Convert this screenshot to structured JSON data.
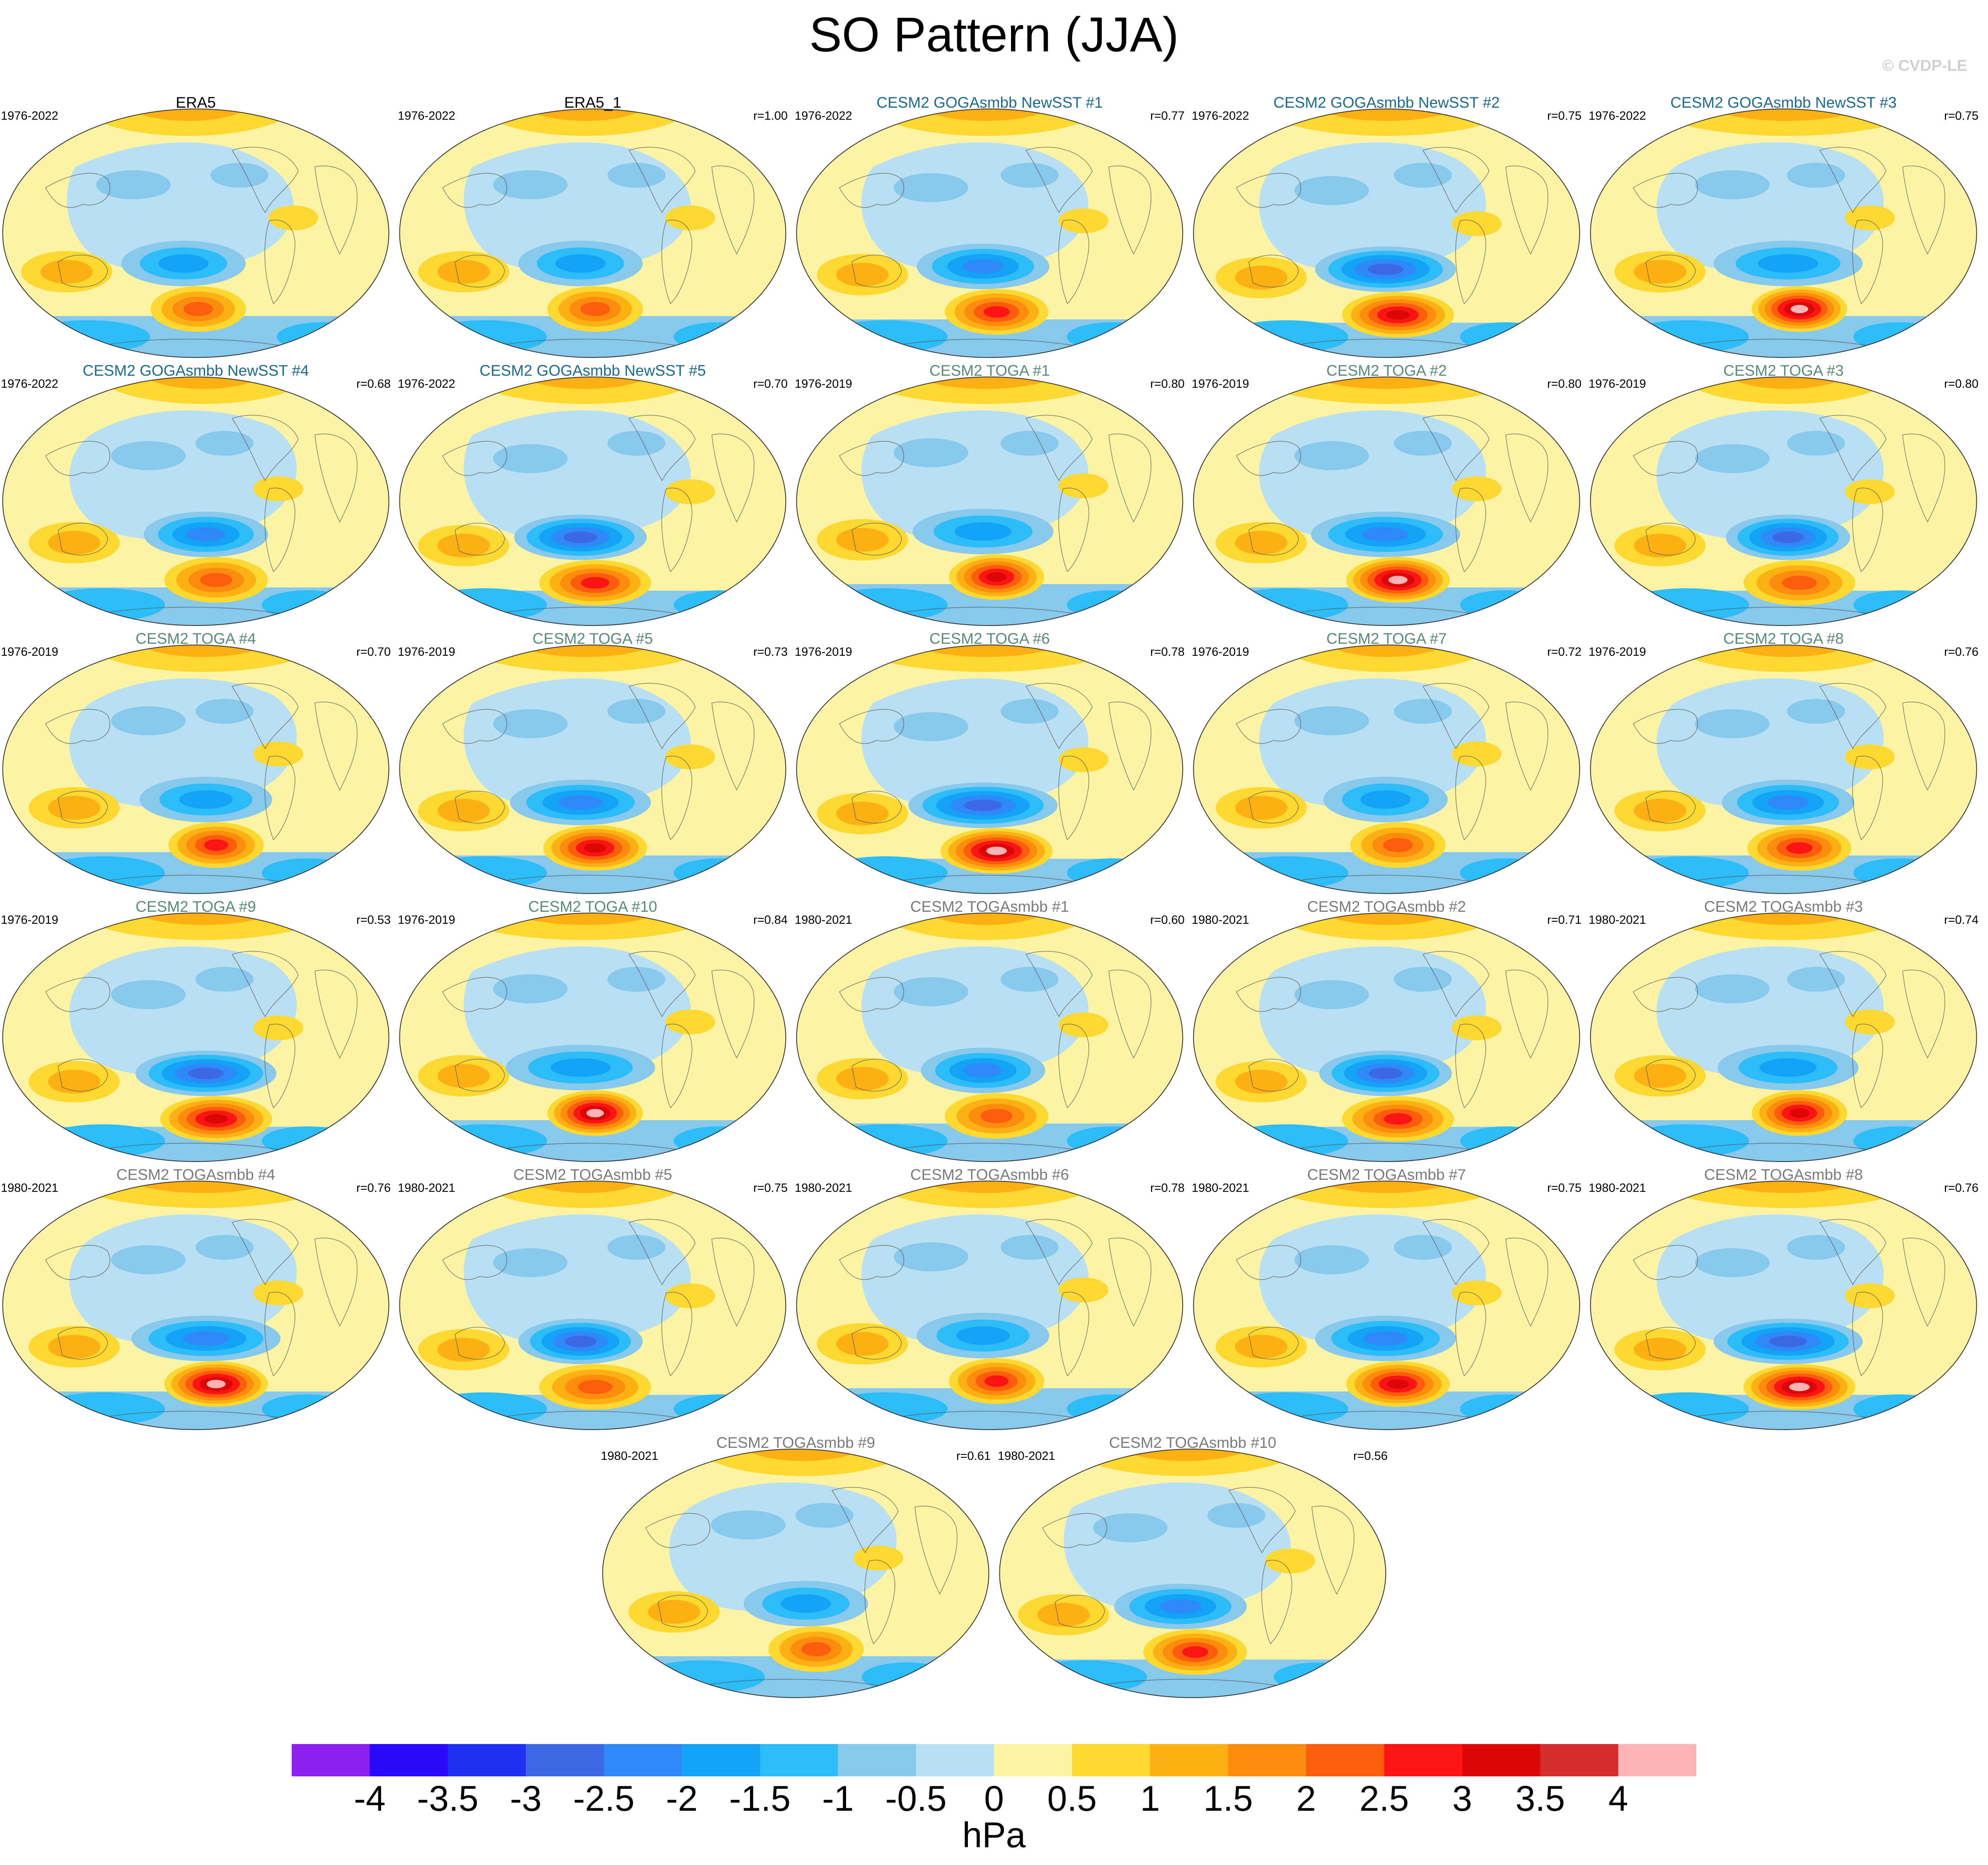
{
  "title": "SO Pattern (JJA)",
  "watermark": "© CVDP-LE",
  "panels": [
    {
      "label": "ERA5",
      "years": "1976-2022",
      "r": "",
      "label_color": "#000000",
      "variant": 0
    },
    {
      "label": "ERA5_1",
      "years": "1976-2022",
      "r": "r=1.00",
      "label_color": "#000000",
      "variant": 0
    },
    {
      "label": "CESM2 GOGAsmbb NewSST #1",
      "years": "1976-2022",
      "r": "r=0.77",
      "label_color": "#1e6a8a",
      "variant": 1
    },
    {
      "label": "CESM2 GOGAsmbb NewSST #2",
      "years": "1976-2022",
      "r": "r=0.75",
      "label_color": "#1e6a8a",
      "variant": 2
    },
    {
      "label": "CESM2 GOGAsmbb NewSST #3",
      "years": "1976-2022",
      "r": "r=0.75",
      "label_color": "#1e6a8a",
      "variant": 3
    },
    {
      "label": "CESM2 GOGAsmbb NewSST #4",
      "years": "1976-2022",
      "r": "r=0.68",
      "label_color": "#1e6a8a",
      "variant": 4
    },
    {
      "label": "CESM2 GOGAsmbb NewSST #5",
      "years": "1976-2022",
      "r": "r=0.70",
      "label_color": "#1e6a8a",
      "variant": 5
    },
    {
      "label": "CESM2 TOGA #1",
      "years": "1976-2019",
      "r": "r=0.80",
      "label_color": "#5a8a78",
      "variant": 6
    },
    {
      "label": "CESM2 TOGA #2",
      "years": "1976-2019",
      "r": "r=0.80",
      "label_color": "#5a8a78",
      "variant": 7
    },
    {
      "label": "CESM2 TOGA #3",
      "years": "1976-2019",
      "r": "r=0.80",
      "label_color": "#5a8a78",
      "variant": 8
    },
    {
      "label": "CESM2 TOGA #4",
      "years": "1976-2019",
      "r": "r=0.70",
      "label_color": "#5a8a78",
      "variant": 9
    },
    {
      "label": "CESM2 TOGA #5",
      "years": "1976-2019",
      "r": "r=0.73",
      "label_color": "#5a8a78",
      "variant": 10
    },
    {
      "label": "CESM2 TOGA #6",
      "years": "1976-2019",
      "r": "r=0.78",
      "label_color": "#5a8a78",
      "variant": 11
    },
    {
      "label": "CESM2 TOGA #7",
      "years": "1976-2019",
      "r": "r=0.72",
      "label_color": "#5a8a78",
      "variant": 12
    },
    {
      "label": "CESM2 TOGA #8",
      "years": "1976-2019",
      "r": "r=0.76",
      "label_color": "#5a8a78",
      "variant": 13
    },
    {
      "label": "CESM2 TOGA #9",
      "years": "1976-2019",
      "r": "r=0.53",
      "label_color": "#5a8a78",
      "variant": 14
    },
    {
      "label": "CESM2 TOGA #10",
      "years": "1976-2019",
      "r": "r=0.84",
      "label_color": "#5a8a78",
      "variant": 15
    },
    {
      "label": "CESM2 TOGAsmbb #1",
      "years": "1980-2021",
      "r": "r=0.60",
      "label_color": "#7a7a7a",
      "variant": 16
    },
    {
      "label": "CESM2 TOGAsmbb #2",
      "years": "1980-2021",
      "r": "r=0.71",
      "label_color": "#7a7a7a",
      "variant": 17
    },
    {
      "label": "CESM2 TOGAsmbb #3",
      "years": "1980-2021",
      "r": "r=0.74",
      "label_color": "#7a7a7a",
      "variant": 18
    },
    {
      "label": "CESM2 TOGAsmbb #4",
      "years": "1980-2021",
      "r": "r=0.76",
      "label_color": "#7a7a7a",
      "variant": 19
    },
    {
      "label": "CESM2 TOGAsmbb #5",
      "years": "1980-2021",
      "r": "r=0.75",
      "label_color": "#7a7a7a",
      "variant": 20
    },
    {
      "label": "CESM2 TOGAsmbb #6",
      "years": "1980-2021",
      "r": "r=0.78",
      "label_color": "#7a7a7a",
      "variant": 21
    },
    {
      "label": "CESM2 TOGAsmbb #7",
      "years": "1980-2021",
      "r": "r=0.75",
      "label_color": "#7a7a7a",
      "variant": 22
    },
    {
      "label": "CESM2 TOGAsmbb #8",
      "years": "1980-2021",
      "r": "r=0.76",
      "label_color": "#7a7a7a",
      "variant": 23
    },
    {
      "label": "CESM2 TOGAsmbb #9",
      "years": "1980-2021",
      "r": "r=0.61",
      "label_color": "#7a7a7a",
      "variant": 24
    },
    {
      "label": "CESM2 TOGAsmbb #10",
      "years": "1980-2021",
      "r": "r=0.56",
      "label_color": "#7a7a7a",
      "variant": 25
    }
  ],
  "colorbar": {
    "colors": [
      "#8a1ff0",
      "#2a08f8",
      "#2030f0",
      "#3c68e6",
      "#2e88f8",
      "#14a2f6",
      "#2cbcf8",
      "#88c8ec",
      "#b8e0f2",
      "#fcf4a4",
      "#fcd830",
      "#fcb014",
      "#fc8c0c",
      "#fc5c0c",
      "#fc1414",
      "#dc0808",
      "#d42c2c",
      "#fcb4b4"
    ],
    "labels": [
      "-4",
      "-3.5",
      "-3",
      "-2.5",
      "-2",
      "-1.5",
      "-1",
      "-0.5",
      "0",
      "0.5",
      "1",
      "1.5",
      "2",
      "2.5",
      "3",
      "3.5",
      "4"
    ],
    "unit": "hPa"
  }
}
